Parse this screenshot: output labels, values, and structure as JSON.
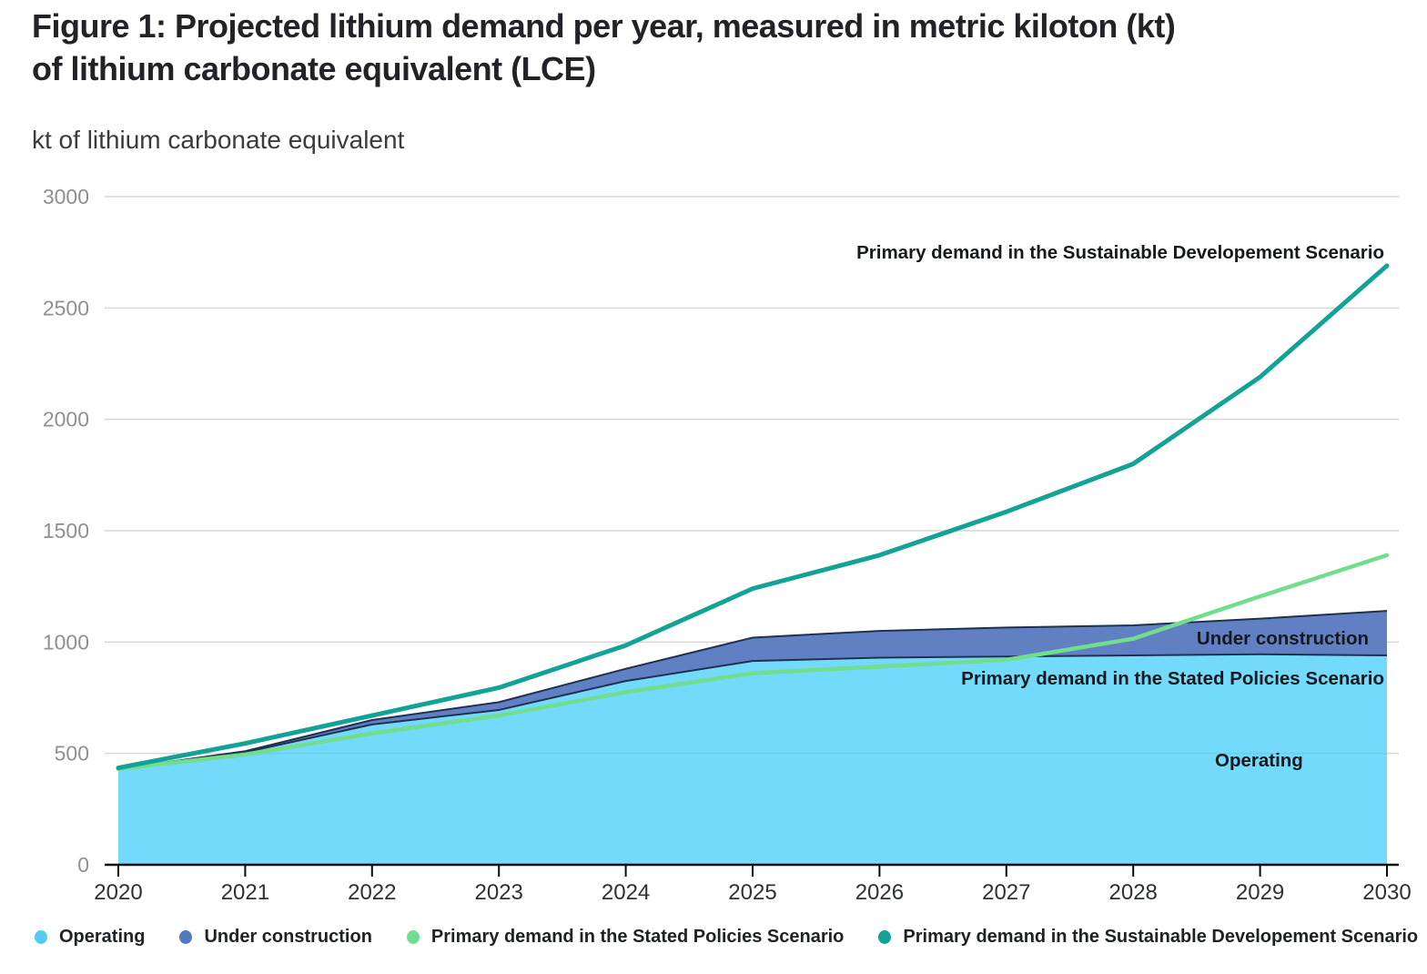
{
  "title": {
    "line1": "Figure 1: Projected lithium demand per year, measured in metric kiloton (kt)",
    "line2": "of lithium carbonate equivalent (LCE)"
  },
  "subtitle": "kt of lithium carbonate equivalent",
  "annotations": {
    "sustainable": "Primary demand in the Sustainable Developement Scenario",
    "under_construction": "Under construction",
    "stated": "Primary demand in the Stated Policies Scenario",
    "operating": "Operating"
  },
  "legend": [
    {
      "label": "Operating",
      "color": "#55cbf2"
    },
    {
      "label": "Under construction",
      "color": "#5478be"
    },
    {
      "label": "Primary demand in the Stated Policies Scenario",
      "color": "#70de8c"
    },
    {
      "label": "Primary demand in the Sustainable Developement Scenario",
      "color": "#12a296"
    }
  ],
  "chart_data": {
    "type": "area",
    "title": "Figure 1: Projected lithium demand per year, measured in metric kiloton (kt) of lithium carbonate equivalent (LCE)",
    "ylabel": "kt of lithium carbonate equivalent",
    "xlabel": "",
    "x": [
      2020,
      2021,
      2022,
      2023,
      2024,
      2025,
      2026,
      2027,
      2028,
      2029,
      2030
    ],
    "series": [
      {
        "name": "Operating",
        "render": "stacked-area",
        "values": [
          430,
          505,
          630,
          695,
          825,
          915,
          930,
          935,
          940,
          945,
          940
        ],
        "fill": "#73dafb",
        "edge": "#20304f"
      },
      {
        "name": "Under construction",
        "render": "stacked-area",
        "values": [
          0,
          5,
          20,
          35,
          55,
          105,
          120,
          130,
          135,
          160,
          200
        ],
        "fill": "#6180c3",
        "edge": "#20304f"
      },
      {
        "name": "Primary demand in the Stated Policies Scenario",
        "render": "line",
        "values": [
          430,
          495,
          590,
          670,
          775,
          860,
          890,
          920,
          1015,
          1205,
          1390
        ],
        "color": "#70de8c",
        "width": 4.5
      },
      {
        "name": "Primary demand in the Sustainable Developement Scenario",
        "render": "line",
        "values": [
          435,
          545,
          670,
          795,
          985,
          1240,
          1390,
          1585,
          1800,
          2190,
          2690
        ],
        "color": "#12a296",
        "width": 5
      }
    ],
    "ylim": [
      0,
      3000
    ],
    "yticks": [
      0,
      500,
      1000,
      1500,
      2000,
      2500,
      3000
    ],
    "xticks": [
      2020,
      2021,
      2022,
      2023,
      2024,
      2025,
      2026,
      2027,
      2028,
      2029,
      2030
    ],
    "grid": true,
    "legend_position": "bottom",
    "colors": {
      "grid": "#e8e8e8",
      "grid_overlay": "rgba(110,110,110,0.14)",
      "axis": "#0a0a0a",
      "ytick_label": "#8f9094",
      "xtick_label": "#2e3135"
    }
  }
}
